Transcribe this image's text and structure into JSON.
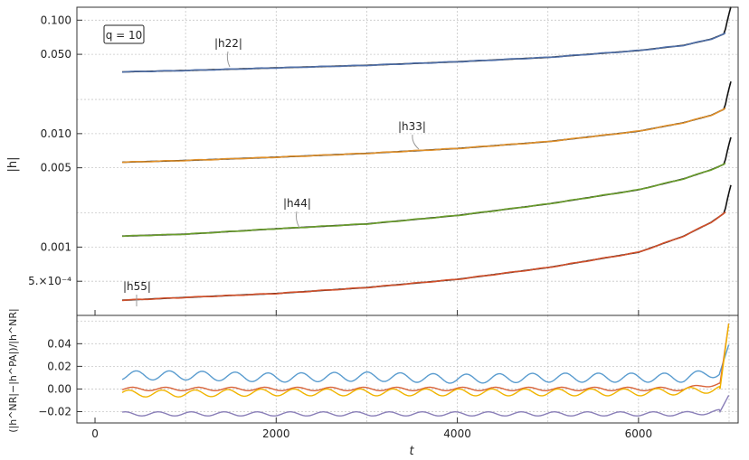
{
  "chart_data": [
    {
      "type": "line",
      "panel": "top",
      "ylabel": "|h|",
      "yscale": "log",
      "xlim": [
        -200,
        7100
      ],
      "ylim": [
        0.00025,
        0.13
      ],
      "ytick_values": [
        0.1,
        0.05,
        0.01,
        0.005,
        0.001,
        0.0005
      ],
      "ytick_labels": [
        "0.100",
        "0.050",
        "0.010",
        "0.005",
        "0.001",
        "5.×10⁻⁴"
      ],
      "grid": true,
      "legend_box": "q = 10",
      "annotations": [
        "|h22|",
        "|h33|",
        "|h44|",
        "|h55|"
      ],
      "x": [
        300,
        1000,
        2000,
        3000,
        4000,
        5000,
        6000,
        6500,
        6800,
        6950,
        7020
      ],
      "series": [
        {
          "name": "|h22|",
          "color": "#4f6fa8",
          "values": [
            0.035,
            0.036,
            0.038,
            0.04,
            0.043,
            0.047,
            0.054,
            0.06,
            0.068,
            0.076,
            0.082
          ]
        },
        {
          "name": "|h33|",
          "color": "#e0902a",
          "values": [
            0.0056,
            0.0058,
            0.0062,
            0.0067,
            0.0074,
            0.0085,
            0.0105,
            0.0125,
            0.0145,
            0.0165,
            0.018
          ]
        },
        {
          "name": "|h44|",
          "color": "#6a9e2c",
          "values": [
            0.00125,
            0.0013,
            0.00145,
            0.0016,
            0.0019,
            0.0024,
            0.0032,
            0.004,
            0.0048,
            0.0054,
            0.0058
          ]
        },
        {
          "name": "|h55|",
          "color": "#d2502a",
          "values": [
            0.00034,
            0.00036,
            0.00039,
            0.00044,
            0.00052,
            0.00066,
            0.0009,
            0.00125,
            0.00165,
            0.002,
            0.0022
          ]
        }
      ]
    },
    {
      "type": "line",
      "panel": "bottom",
      "xlabel": "t",
      "ylabel": "(|h^NR|−|h^PA|)/|h^NR|",
      "xlim": [
        -200,
        7100
      ],
      "ylim": [
        -0.03,
        0.065
      ],
      "xtick_values": [
        0,
        2000,
        4000,
        6000
      ],
      "ytick_values": [
        -0.02,
        0.0,
        0.02,
        0.04
      ],
      "ytick_labels": [
        "−0.02",
        "0.00",
        "0.02",
        "0.04"
      ],
      "grid": true,
      "x": [
        300,
        1000,
        2000,
        3000,
        4000,
        5000,
        6000,
        6500,
        6900,
        7000
      ],
      "series": [
        {
          "color": "#5a9ccf",
          "values": [
            0.012,
            0.012,
            0.01,
            0.011,
            0.009,
            0.01,
            0.01,
            0.01,
            0.015,
            0.04
          ]
        },
        {
          "color": "#d9643a",
          "values": [
            0.0,
            0.0,
            0.0,
            0.0,
            0.0,
            0.0,
            0.0,
            0.0,
            0.005,
            0.06
          ]
        },
        {
          "color": "#f0b400",
          "values": [
            -0.004,
            -0.004,
            -0.003,
            -0.003,
            -0.003,
            -0.003,
            -0.003,
            -0.002,
            0.0,
            0.06
          ]
        },
        {
          "color": "#8a7fb8",
          "values": [
            -0.022,
            -0.022,
            -0.022,
            -0.022,
            -0.022,
            -0.022,
            -0.022,
            -0.022,
            -0.02,
            -0.005
          ]
        }
      ]
    }
  ]
}
